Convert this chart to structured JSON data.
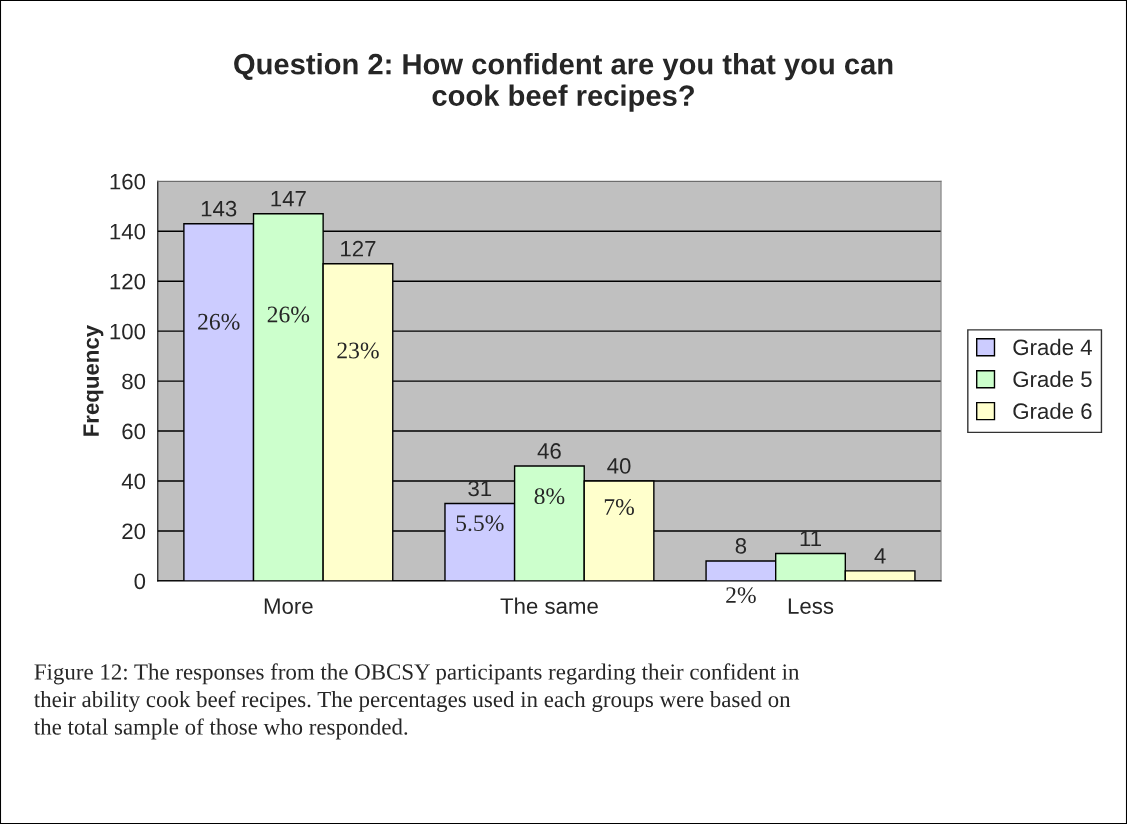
{
  "chart_data": {
    "type": "bar",
    "title": "Question 2: How confident are you that you can cook beef recipes?",
    "ylabel": "Frequency",
    "categories": [
      "More",
      "The same",
      "Less"
    ],
    "series": [
      {
        "name": "Grade 4",
        "color": "#ccccff",
        "values": [
          143,
          31,
          8
        ]
      },
      {
        "name": "Grade 5",
        "color": "#ccffcc",
        "values": [
          147,
          46,
          11
        ]
      },
      {
        "name": "Grade 6",
        "color": "#ffffcc",
        "values": [
          127,
          40,
          4
        ]
      }
    ],
    "ylim": [
      0,
      160
    ],
    "yticks": [
      0,
      20,
      40,
      60,
      80,
      100,
      120,
      140,
      160
    ],
    "grid": "y",
    "legend": "right",
    "data_labels": true,
    "annotations": [
      "26%",
      "26%",
      "23%",
      "5.5%",
      "8%",
      "7%",
      "2%",
      "Figure 12: The responses from the OBCSY participants regarding their confident in their ability cook beef recipes. The percentages used in each groups were based on the total sample of those who responded."
    ]
  }
}
